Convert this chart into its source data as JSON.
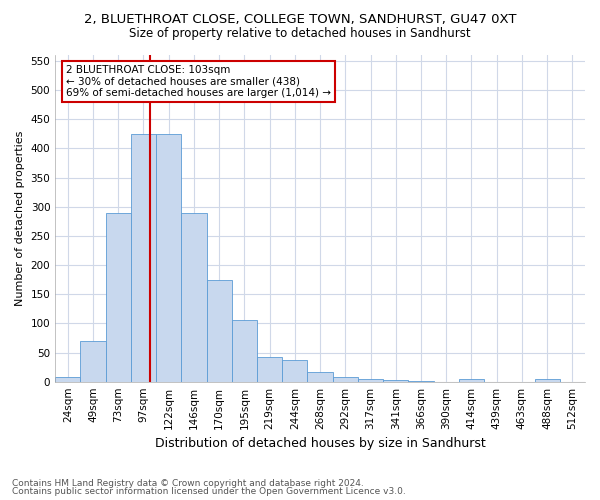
{
  "title1": "2, BLUETHROAT CLOSE, COLLEGE TOWN, SANDHURST, GU47 0XT",
  "title2": "Size of property relative to detached houses in Sandhurst",
  "xlabel": "Distribution of detached houses by size in Sandhurst",
  "ylabel": "Number of detached properties",
  "footer1": "Contains HM Land Registry data © Crown copyright and database right 2024.",
  "footer2": "Contains public sector information licensed under the Open Government Licence v3.0.",
  "bar_labels": [
    "24sqm",
    "49sqm",
    "73sqm",
    "97sqm",
    "122sqm",
    "146sqm",
    "170sqm",
    "195sqm",
    "219sqm",
    "244sqm",
    "268sqm",
    "292sqm",
    "317sqm",
    "341sqm",
    "366sqm",
    "390sqm",
    "414sqm",
    "439sqm",
    "463sqm",
    "488sqm",
    "512sqm"
  ],
  "bar_values": [
    8,
    70,
    290,
    425,
    425,
    290,
    175,
    105,
    43,
    37,
    16,
    8,
    5,
    3,
    2,
    0,
    4,
    0,
    0,
    4,
    0
  ],
  "bar_color": "#c8d8ee",
  "bar_edgecolor": "#5b9bd5",
  "grid_color": "#d0d8e8",
  "vline_x_index": 3.5,
  "annotation_text": "2 BLUETHROAT CLOSE: 103sqm\n← 30% of detached houses are smaller (438)\n69% of semi-detached houses are larger (1,014) →",
  "annotation_box_color": "#ffffff",
  "annotation_box_edgecolor": "#cc0000",
  "vline_color": "#cc0000",
  "ylim": [
    0,
    560
  ],
  "yticks": [
    0,
    50,
    100,
    150,
    200,
    250,
    300,
    350,
    400,
    450,
    500,
    550
  ],
  "title1_fontsize": 9.5,
  "title2_fontsize": 8.5,
  "xlabel_fontsize": 9,
  "ylabel_fontsize": 8,
  "footer_fontsize": 6.5,
  "tick_fontsize": 7.5,
  "annot_fontsize": 7.5
}
